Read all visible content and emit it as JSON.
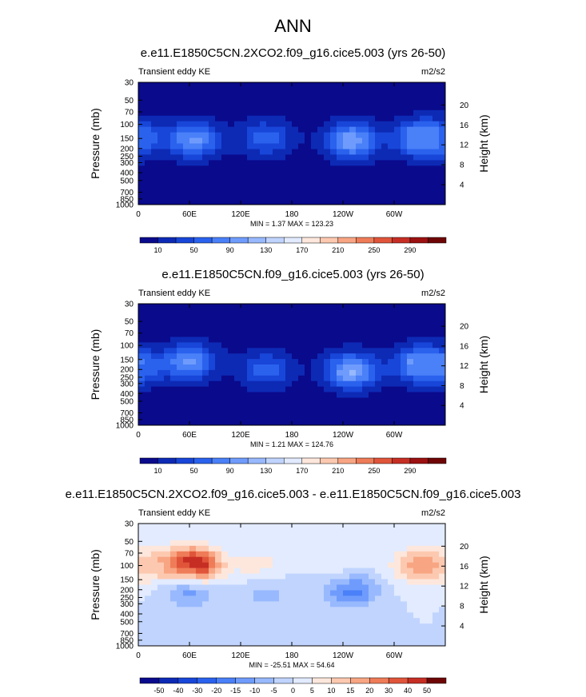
{
  "figure": {
    "title": "ANN"
  },
  "axes": {
    "xticks": [
      "0",
      "60E",
      "120E",
      "180",
      "120W",
      "60W"
    ],
    "xtick_lon": [
      0,
      60,
      120,
      180,
      240,
      300
    ],
    "xlim": [
      0,
      360
    ],
    "yticks": [
      "30",
      "50",
      "70",
      "100",
      "150",
      "200",
      "250",
      "300",
      "400",
      "500",
      "700",
      "850",
      "1000"
    ],
    "ytick_p": [
      30,
      50,
      70,
      100,
      150,
      200,
      250,
      300,
      400,
      500,
      700,
      850,
      1000
    ],
    "ylim": [
      1000,
      30
    ],
    "yscale": "log",
    "ylabel": "Pressure (mb)",
    "y2label": "Height (km)",
    "y2ticks": [
      "20",
      "16",
      "12",
      "8",
      "4"
    ],
    "y2tick_km": [
      20,
      16,
      12,
      8,
      4
    ]
  },
  "chart_data": [
    {
      "type": "heatmap",
      "title": "e.e11.E1850C5CN.2XCO2.f09_g16.cice5.003 (yrs 26-50)",
      "left_label": "Transient eddy KE",
      "units": "m2/s2",
      "stats_text": "MIN =   1.37  MAX = 123.23",
      "min": 1.37,
      "max": 123.23,
      "colorbar_labels": [
        "10",
        "50",
        "90",
        "130",
        "170",
        "210",
        "250",
        "290"
      ],
      "colorbar_colors": [
        "#0a0a8c",
        "#0d2ab5",
        "#1846d8",
        "#2a62ee",
        "#4a80f8",
        "#6f9cfc",
        "#98b9fd",
        "#c0d4fe",
        "#e2ebff",
        "#fde7dc",
        "#fcc9b0",
        "#f8a583",
        "#ef7c58",
        "#e0553a",
        "#c62e24",
        "#9c1111",
        "#6e0505"
      ],
      "field": [
        {
          "lon": 0,
          "p": 150,
          "v": 50
        },
        {
          "lon": 65,
          "p": 155,
          "v": 85
        },
        {
          "lon": 150,
          "p": 150,
          "v": 55
        },
        {
          "lon": 250,
          "p": 160,
          "v": 95
        },
        {
          "lon": 330,
          "p": 150,
          "v": 85
        }
      ]
    },
    {
      "type": "heatmap",
      "title": "e.e11.E1850C5CN.f09_g16.cice5.003 (yrs 26-50)",
      "left_label": "Transient eddy KE",
      "units": "m2/s2",
      "stats_text": "MIN =   1.21  MAX = 124.76",
      "min": 1.21,
      "max": 124.76,
      "colorbar_labels": [
        "10",
        "50",
        "90",
        "130",
        "170",
        "210",
        "250",
        "290"
      ],
      "colorbar_colors": [
        "#0a0a8c",
        "#0d2ab5",
        "#1846d8",
        "#2a62ee",
        "#4a80f8",
        "#6f9cfc",
        "#98b9fd",
        "#c0d4fe",
        "#e2ebff",
        "#fde7dc",
        "#fcc9b0",
        "#f8a583",
        "#ef7c58",
        "#e0553a",
        "#c62e24",
        "#9c1111",
        "#6e0505"
      ],
      "field": [
        {
          "lon": 0,
          "p": 190,
          "v": 55
        },
        {
          "lon": 60,
          "p": 160,
          "v": 85
        },
        {
          "lon": 150,
          "p": 200,
          "v": 55
        },
        {
          "lon": 250,
          "p": 210,
          "v": 100
        },
        {
          "lon": 330,
          "p": 170,
          "v": 85
        }
      ]
    },
    {
      "type": "heatmap",
      "title": "e.e11.E1850C5CN.2XCO2.f09_g16.cice5.003 - e.e11.E1850C5CN.f09_g16.cice5.003",
      "left_label": "Transient eddy KE",
      "units": "m2/s2",
      "stats_text": "MIN = -25.51  MAX =  54.64",
      "min": -25.51,
      "max": 54.64,
      "colorbar_labels": [
        "-50",
        "-40",
        "-30",
        "-20",
        "-15",
        "-10",
        "-5",
        "0",
        "5",
        "10",
        "15",
        "20",
        "30",
        "40",
        "50"
      ],
      "colorbar_colors": [
        "#0a0a8c",
        "#0d2ab5",
        "#1846d8",
        "#2a62ee",
        "#4a80f8",
        "#6f9cfc",
        "#98b9fd",
        "#c0d4fe",
        "#e2ebff",
        "#fde7dc",
        "#fcc9b0",
        "#f8a583",
        "#ef7c58",
        "#e0553a",
        "#c62e24",
        "#6e0505"
      ],
      "field": [
        {
          "lon": 65,
          "p": 100,
          "v": 54
        },
        {
          "lon": 20,
          "p": 100,
          "v": 15
        },
        {
          "lon": 140,
          "p": 100,
          "v": 10
        },
        {
          "lon": 240,
          "p": 100,
          "v": 8
        },
        {
          "lon": 330,
          "p": 100,
          "v": 25
        },
        {
          "lon": 60,
          "p": 200,
          "v": -20
        },
        {
          "lon": 250,
          "p": 200,
          "v": -25
        },
        {
          "lon": 150,
          "p": 220,
          "v": -10
        }
      ]
    }
  ]
}
